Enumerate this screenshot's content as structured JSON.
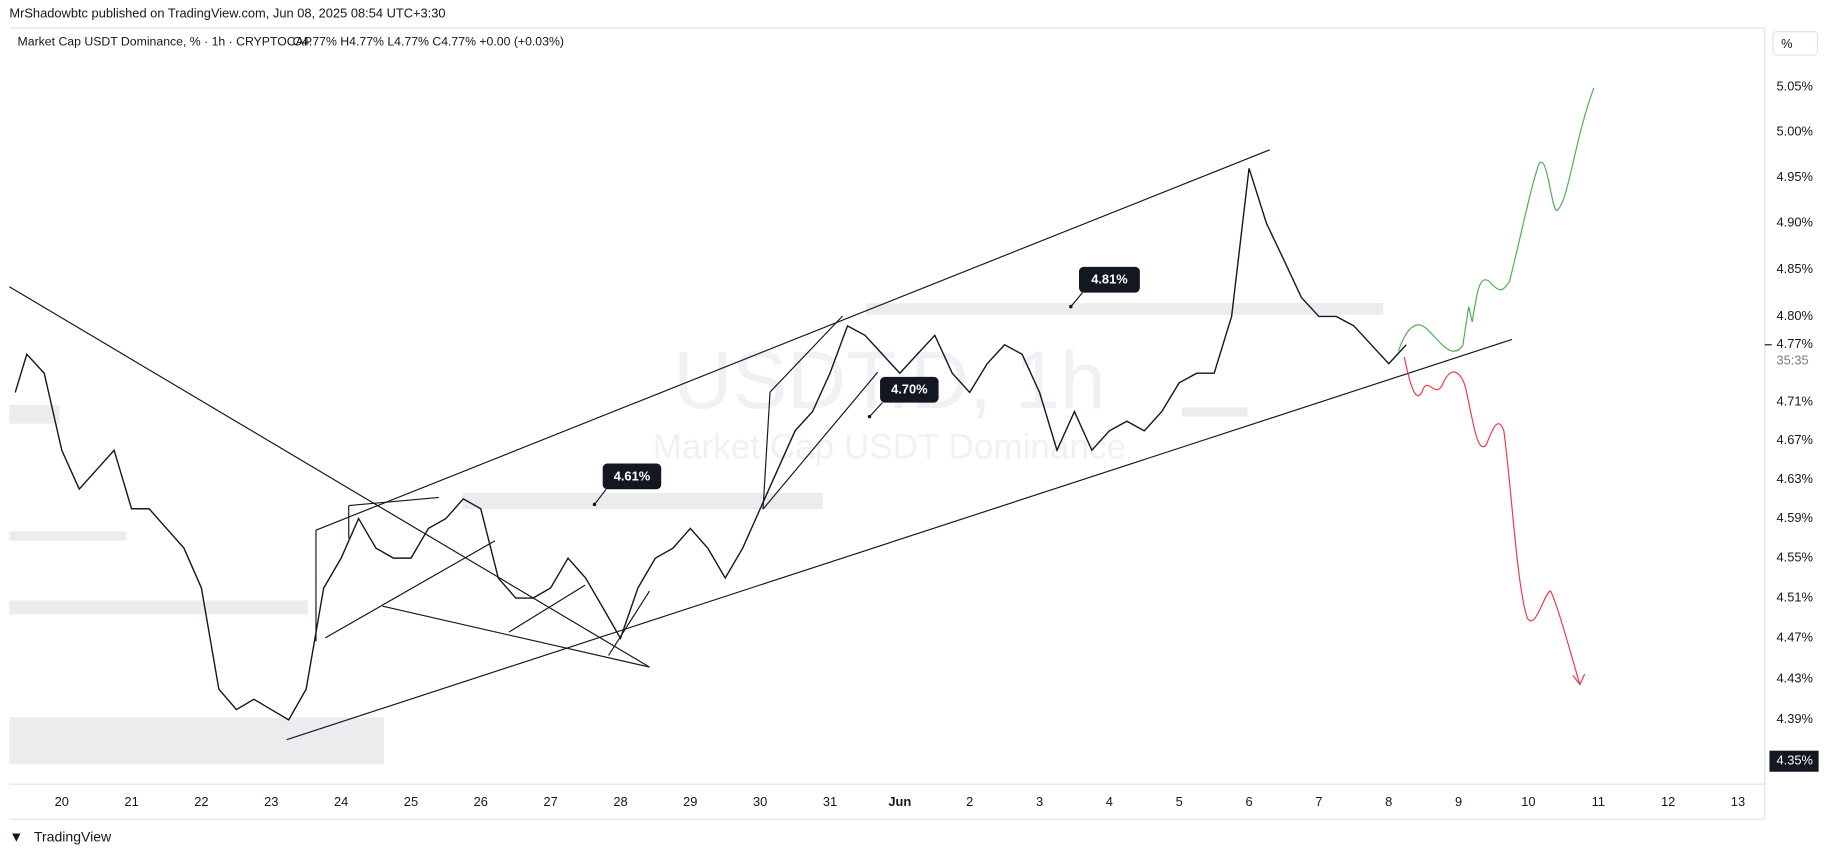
{
  "header": {
    "published": "MrShadowbtc published on TradingView.com, Jun 08, 2025 08:54 UTC+3:30",
    "legend": "Market Cap USDT Dominance, % · 1h · CRYPTOCAP",
    "ohlc": "O4.77%  H4.77%  L4.77%  C4.77%  +0.00 (+0.03%)",
    "scale_button": "%",
    "logo": "TradingView"
  },
  "watermark": {
    "symbol": "USDT.D, 1h",
    "name": "Market Cap USDT Dominance"
  },
  "annotations": [
    "4.81%",
    "4.70%",
    "4.61%"
  ],
  "chart_data": {
    "type": "line",
    "log_scale": true,
    "color": "#131722",
    "x": [
      "2025-05-19 08:00",
      "2025-05-19 12:00",
      "2025-05-19 18:00",
      "2025-05-20 00:00",
      "2025-05-20 06:00",
      "2025-05-20 12:00",
      "2025-05-20 18:00",
      "2025-05-21 00:00",
      "2025-05-21 06:00",
      "2025-05-21 12:00",
      "2025-05-21 18:00",
      "2025-05-22 00:00",
      "2025-05-22 06:00",
      "2025-05-22 12:00",
      "2025-05-22 18:00",
      "2025-05-23 00:00",
      "2025-05-23 06:00",
      "2025-05-23 12:00",
      "2025-05-23 18:00",
      "2025-05-24 00:00",
      "2025-05-24 06:00",
      "2025-05-24 12:00",
      "2025-05-24 18:00",
      "2025-05-25 00:00",
      "2025-05-25 06:00",
      "2025-05-25 12:00",
      "2025-05-25 18:00",
      "2025-05-26 00:00",
      "2025-05-26 06:00",
      "2025-05-26 12:00",
      "2025-05-26 18:00",
      "2025-05-27 00:00",
      "2025-05-27 06:00",
      "2025-05-27 12:00",
      "2025-05-27 18:00",
      "2025-05-28 00:00",
      "2025-05-28 06:00",
      "2025-05-28 12:00",
      "2025-05-28 18:00",
      "2025-05-29 00:00",
      "2025-05-29 06:00",
      "2025-05-29 12:00",
      "2025-05-29 18:00",
      "2025-05-30 00:00",
      "2025-05-30 06:00",
      "2025-05-30 12:00",
      "2025-05-30 18:00",
      "2025-05-31 00:00",
      "2025-05-31 06:00",
      "2025-05-31 12:00",
      "2025-05-31 18:00",
      "2025-06-01 00:00",
      "2025-06-01 06:00",
      "2025-06-01 12:00",
      "2025-06-01 18:00",
      "2025-06-02 00:00",
      "2025-06-02 06:00",
      "2025-06-02 12:00",
      "2025-06-02 18:00",
      "2025-06-03 00:00",
      "2025-06-03 06:00",
      "2025-06-03 12:00",
      "2025-06-03 18:00",
      "2025-06-04 00:00",
      "2025-06-04 06:00",
      "2025-06-04 12:00",
      "2025-06-04 18:00",
      "2025-06-05 00:00",
      "2025-06-05 06:00",
      "2025-06-05 12:00",
      "2025-06-05 18:00",
      "2025-06-06 00:00",
      "2025-06-06 06:00",
      "2025-06-06 12:00",
      "2025-06-06 18:00",
      "2025-06-07 00:00",
      "2025-06-07 06:00",
      "2025-06-07 12:00",
      "2025-06-07 18:00",
      "2025-06-08 00:00",
      "2025-06-08 06:00"
    ],
    "values": [
      4.72,
      4.76,
      4.74,
      4.66,
      4.62,
      4.64,
      4.66,
      4.6,
      4.6,
      4.58,
      4.56,
      4.52,
      4.42,
      4.4,
      4.41,
      4.4,
      4.39,
      4.42,
      4.52,
      4.55,
      4.59,
      4.56,
      4.55,
      4.55,
      4.58,
      4.59,
      4.61,
      4.6,
      4.53,
      4.51,
      4.51,
      4.52,
      4.55,
      4.53,
      4.5,
      4.47,
      4.52,
      4.55,
      4.56,
      4.58,
      4.56,
      4.53,
      4.56,
      4.6,
      4.64,
      4.68,
      4.7,
      4.74,
      4.79,
      4.78,
      4.76,
      4.74,
      4.76,
      4.78,
      4.74,
      4.72,
      4.75,
      4.77,
      4.76,
      4.72,
      4.66,
      4.7,
      4.66,
      4.68,
      4.69,
      4.68,
      4.7,
      4.73,
      4.74,
      4.74,
      4.8,
      4.96,
      4.9,
      4.86,
      4.82,
      4.8,
      4.8,
      4.79,
      4.77,
      4.75,
      4.77
    ],
    "xlim": [
      "2025-05-19 06:00",
      "2025-06-13 06:00"
    ],
    "xticks": [
      {
        "value": "2025-05-20",
        "label": "20"
      },
      {
        "value": "2025-05-21",
        "label": "21"
      },
      {
        "value": "2025-05-22",
        "label": "22"
      },
      {
        "value": "2025-05-23",
        "label": "23"
      },
      {
        "value": "2025-05-24",
        "label": "24"
      },
      {
        "value": "2025-05-25",
        "label": "25"
      },
      {
        "value": "2025-05-26",
        "label": "26"
      },
      {
        "value": "2025-05-27",
        "label": "27"
      },
      {
        "value": "2025-05-28",
        "label": "28"
      },
      {
        "value": "2025-05-29",
        "label": "29"
      },
      {
        "value": "2025-05-30",
        "label": "30"
      },
      {
        "value": "2025-05-31",
        "label": "31"
      },
      {
        "value": "2025-06-01",
        "label": "Jun"
      },
      {
        "value": "2025-06-02",
        "label": "2"
      },
      {
        "value": "2025-06-03",
        "label": "3"
      },
      {
        "value": "2025-06-04",
        "label": "4"
      },
      {
        "value": "2025-06-05",
        "label": "5"
      },
      {
        "value": "2025-06-06",
        "label": "6"
      },
      {
        "value": "2025-06-07",
        "label": "7"
      },
      {
        "value": "2025-06-08",
        "label": "8"
      },
      {
        "value": "2025-06-09",
        "label": "9"
      },
      {
        "value": "2025-06-10",
        "label": "10"
      },
      {
        "value": "2025-06-11",
        "label": "11"
      },
      {
        "value": "2025-06-12",
        "label": "12"
      },
      {
        "value": "2025-06-13",
        "label": "13"
      }
    ],
    "ylim": [
      4.328,
      5.115
    ],
    "yticks": [
      {
        "value": 5.05,
        "label": "5.05%"
      },
      {
        "value": 5.0,
        "label": "5.00%"
      },
      {
        "value": 4.95,
        "label": "4.95%"
      },
      {
        "value": 4.9,
        "label": "4.90%"
      },
      {
        "value": 4.85,
        "label": "4.85%"
      },
      {
        "value": 4.8,
        "label": "4.80%"
      },
      {
        "value": 4.71,
        "label": "4.71%"
      },
      {
        "value": 4.67,
        "label": "4.67%"
      },
      {
        "value": 4.63,
        "label": "4.63%"
      },
      {
        "value": 4.59,
        "label": "4.59%"
      },
      {
        "value": 4.55,
        "label": "4.55%"
      },
      {
        "value": 4.51,
        "label": "4.51%"
      },
      {
        "value": 4.47,
        "label": "4.47%"
      },
      {
        "value": 4.43,
        "label": "4.43%"
      },
      {
        "value": 4.39,
        "label": "4.39%"
      }
    ],
    "last_price": {
      "value": 4.77,
      "label": "4.77%",
      "countdown": "35:35"
    },
    "crosshair_price": {
      "value": 4.35,
      "label": "4.35%"
    }
  }
}
